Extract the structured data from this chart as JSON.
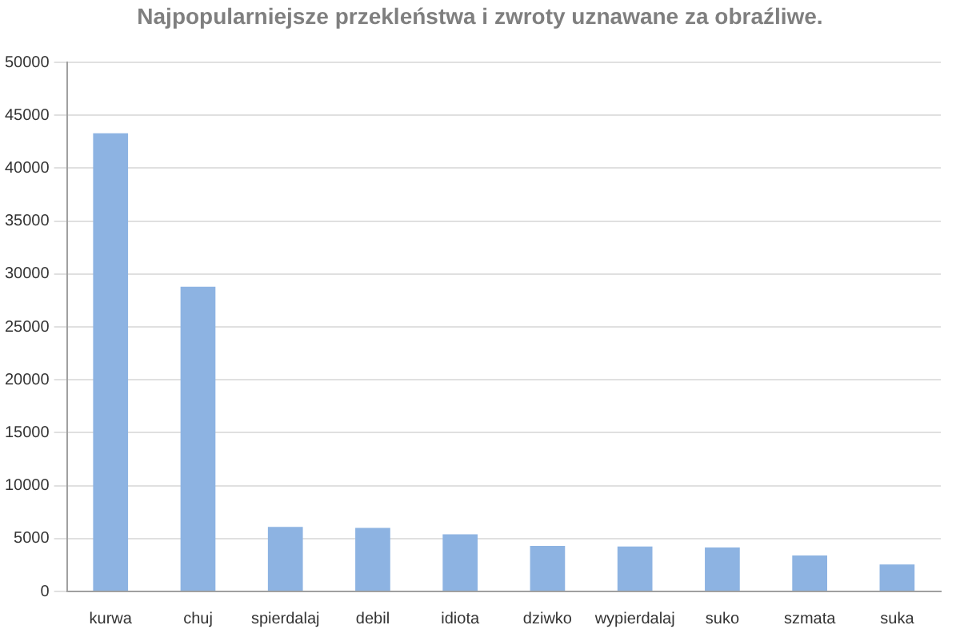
{
  "chart_data": {
    "type": "bar",
    "title": "Najpopularniejsze przekleństwa i zwroty uznawane za obraźliwe.",
    "categories": [
      "kurwa",
      "chuj",
      "spierdalaj",
      "debil",
      "idiota",
      "dziwko",
      "wypierdalaj",
      "suko",
      "szmata",
      "suka"
    ],
    "values": [
      43300,
      28800,
      6100,
      6000,
      5400,
      4300,
      4250,
      4150,
      3400,
      2550
    ],
    "color": "#8db3e2",
    "ylim": [
      0,
      50000
    ],
    "yticks": [
      0,
      5000,
      10000,
      15000,
      20000,
      25000,
      30000,
      35000,
      40000,
      45000,
      50000
    ],
    "grid": "y"
  }
}
